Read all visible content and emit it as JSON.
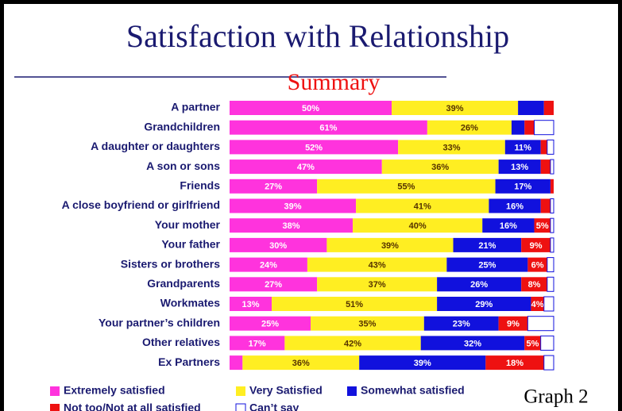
{
  "chart_data": {
    "type": "stacked-barh",
    "title": "Satisfaction with Relationship",
    "subtitle": "Summary",
    "annotation": "Graph 2",
    "legend": "bottom",
    "xlim": [
      0,
      100
    ],
    "categories": [
      "A partner",
      "Grandchildren",
      "A daughter or daughters",
      "A son or sons",
      "Friends",
      "A close boyfriend or girlfriend",
      "Your mother",
      "Your father",
      "Sisters or brothers",
      "Grandparents",
      "Workmates",
      "Your partner’s children",
      "Other relatives",
      "Ex Partners"
    ],
    "series": [
      {
        "name": "Extremely satisfied",
        "color": "#ff33dd",
        "values": [
          50,
          61,
          52,
          47,
          27,
          39,
          38,
          30,
          24,
          27,
          13,
          25,
          17,
          4
        ],
        "value_labels": [
          "50%",
          "61%",
          "52%",
          "47%",
          "27%",
          "39%",
          "38%",
          "30%",
          "24%",
          "27%",
          "13%",
          "25%",
          "17%",
          null
        ]
      },
      {
        "name": "Very Satisfied",
        "color": "#ffee22",
        "values": [
          39,
          26,
          33,
          36,
          55,
          41,
          40,
          39,
          43,
          37,
          51,
          35,
          42,
          36
        ],
        "value_labels": [
          "39%",
          "26%",
          "33%",
          "36%",
          "55%",
          "41%",
          "40%",
          "39%",
          "43%",
          "37%",
          "51%",
          "35%",
          "42%",
          "36%"
        ]
      },
      {
        "name": "Somewhat satisfied",
        "color": "#1111dd",
        "values": [
          8,
          4,
          11,
          13,
          17,
          16,
          16,
          21,
          25,
          26,
          29,
          23,
          32,
          39
        ],
        "value_labels": [
          null,
          null,
          "11%",
          "13%",
          "17%",
          "16%",
          "16%",
          "21%",
          "25%",
          "26%",
          "29%",
          "23%",
          "32%",
          "39%"
        ]
      },
      {
        "name": "Not too/Not at all satisfied",
        "color": "#ee1111",
        "values": [
          3,
          3,
          2,
          3,
          1,
          3,
          5,
          9,
          6,
          8,
          4,
          9,
          5,
          18
        ],
        "value_labels": [
          null,
          null,
          null,
          null,
          null,
          null,
          "5%",
          "9%",
          "6%",
          "8%",
          "4%",
          "9%",
          "5%",
          "18%"
        ]
      },
      {
        "name": "Can’t say",
        "color": "#ffffff",
        "values": [
          0,
          6,
          2,
          1,
          0,
          1,
          1,
          1,
          2,
          2,
          3,
          8,
          4,
          3
        ],
        "value_labels": [
          null,
          null,
          null,
          null,
          null,
          null,
          null,
          null,
          null,
          null,
          null,
          null,
          null,
          null
        ]
      }
    ]
  }
}
